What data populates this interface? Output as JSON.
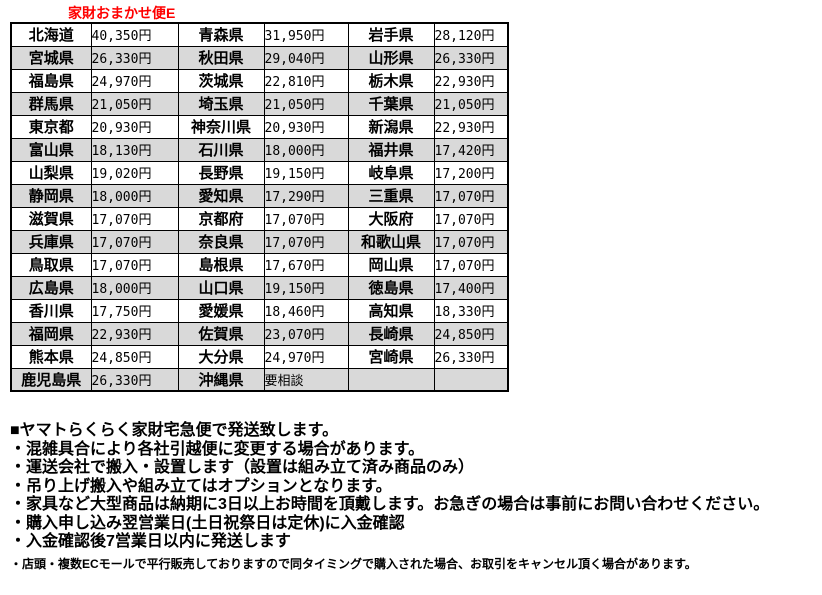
{
  "title": "家財おまかせ便E",
  "colors": {
    "accent_red": "#ff0000",
    "row_gray": "#d9d9d9",
    "border": "#000000"
  },
  "table": {
    "columns": [
      "prefecture",
      "price",
      "prefecture",
      "price",
      "prefecture",
      "price"
    ],
    "rows": [
      [
        "北海道",
        "40,350円",
        "青森県",
        "31,950円",
        "岩手県",
        "28,120円"
      ],
      [
        "宮城県",
        "26,330円",
        "秋田県",
        "29,040円",
        "山形県",
        "26,330円"
      ],
      [
        "福島県",
        "24,970円",
        "茨城県",
        "22,810円",
        "栃木県",
        "22,930円"
      ],
      [
        "群馬県",
        "21,050円",
        "埼玉県",
        "21,050円",
        "千葉県",
        "21,050円"
      ],
      [
        "東京都",
        "20,930円",
        "神奈川県",
        "20,930円",
        "新潟県",
        "22,930円"
      ],
      [
        "富山県",
        "18,130円",
        "石川県",
        "18,000円",
        "福井県",
        "17,420円"
      ],
      [
        "山梨県",
        "19,020円",
        "長野県",
        "19,150円",
        "岐阜県",
        "17,200円"
      ],
      [
        "静岡県",
        "18,000円",
        "愛知県",
        "17,290円",
        "三重県",
        "17,070円"
      ],
      [
        "滋賀県",
        "17,070円",
        "京都府",
        "17,070円",
        "大阪府",
        "17,070円"
      ],
      [
        "兵庫県",
        "17,070円",
        "奈良県",
        "17,070円",
        "和歌山県",
        "17,070円"
      ],
      [
        "鳥取県",
        "17,070円",
        "島根県",
        "17,670円",
        "岡山県",
        "17,070円"
      ],
      [
        "広島県",
        "18,000円",
        "山口県",
        "19,150円",
        "徳島県",
        "17,400円"
      ],
      [
        "香川県",
        "17,750円",
        "愛媛県",
        "18,460円",
        "高知県",
        "18,330円"
      ],
      [
        "福岡県",
        "22,930円",
        "佐賀県",
        "23,070円",
        "長崎県",
        "24,850円"
      ],
      [
        "熊本県",
        "24,850円",
        "大分県",
        "24,970円",
        "宮崎県",
        "26,330円"
      ],
      [
        "鹿児島県",
        "26,330円",
        "沖縄県",
        "要相談",
        "",
        ""
      ]
    ]
  },
  "notes": {
    "heading": "■ヤマトらくらく家財宅急便で発送致します。",
    "bullets": [
      "・混雑具合により各社引越便に変更する場合があります。",
      "・運送会社で搬入・設置します（設置は組み立て済み商品のみ）",
      "・吊り上げ搬入や組み立てはオプションとなります。",
      "・家具など大型商品は納期に3日以上お時間を頂戴します。お急ぎの場合は事前にお問い合わせください。",
      "・購入申し込み翌営業日(土日祝祭日は定休)に入金確認",
      "・入金確認後7営業日以内に発送します"
    ],
    "footnote": "・店頭・複数ECモールで平行販売しておりますので同タイミングで購入された場合、お取引をキャンセル頂く場合があります。"
  }
}
